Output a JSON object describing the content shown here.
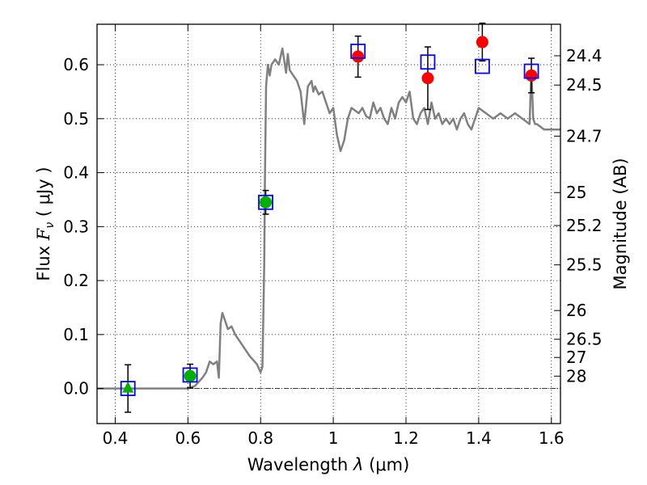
{
  "chart_data": {
    "type": "scatter",
    "x_axis": {
      "label_prefix": "Wavelength  ",
      "label_symbol": "λ",
      "label_suffix": " (μm)",
      "range": [
        0.35,
        1.625
      ],
      "ticks": [
        0.4,
        0.6,
        0.8,
        1.0,
        1.2,
        1.4,
        1.6
      ],
      "tick_labels": [
        "0.4",
        "0.6",
        "0.8",
        "1",
        "1.2",
        "1.4",
        "1.6"
      ]
    },
    "y_axis": {
      "label_prefix": "Flux  ",
      "label_symbol": "F",
      "label_subscript": "ν",
      "label_suffix": "  ( μJy )",
      "range": [
        -0.065,
        0.675
      ],
      "ticks": [
        0.0,
        0.1,
        0.2,
        0.3,
        0.4,
        0.5,
        0.6
      ],
      "tick_labels": [
        "0.0",
        "0.1",
        "0.2",
        "0.3",
        "0.4",
        "0.5",
        "0.6"
      ]
    },
    "y2_axis": {
      "label": "Magnitude (AB)",
      "ticks": [
        {
          "label": "24.4",
          "flux": 0.6166
        },
        {
          "label": "24.5",
          "flux": 0.5623
        },
        {
          "label": "24.7",
          "flux": 0.4677
        },
        {
          "label": "25",
          "flux": 0.3631
        },
        {
          "label": "25.2",
          "flux": 0.302
        },
        {
          "label": "25.5",
          "flux": 0.2291
        },
        {
          "label": "26",
          "flux": 0.1445
        },
        {
          "label": "26.5",
          "flux": 0.0912
        },
        {
          "label": "27",
          "flux": 0.0575
        },
        {
          "label": "28",
          "flux": 0.0229
        }
      ]
    },
    "grid": true,
    "zero_line": true,
    "model_spectrum": {
      "color": "#808080",
      "x": [
        0.35,
        0.6,
        0.62,
        0.64,
        0.65,
        0.66,
        0.67,
        0.68,
        0.685,
        0.69,
        0.695,
        0.7,
        0.71,
        0.72,
        0.73,
        0.75,
        0.77,
        0.79,
        0.8,
        0.805,
        0.81,
        0.812,
        0.815,
        0.82,
        0.825,
        0.83,
        0.84,
        0.85,
        0.86,
        0.87,
        0.875,
        0.88,
        0.89,
        0.9,
        0.91,
        0.92,
        0.93,
        0.94,
        0.945,
        0.95,
        0.96,
        0.97,
        0.98,
        0.99,
        1.0,
        1.01,
        1.02,
        1.03,
        1.04,
        1.05,
        1.06,
        1.07,
        1.08,
        1.09,
        1.1,
        1.11,
        1.12,
        1.13,
        1.14,
        1.15,
        1.16,
        1.17,
        1.18,
        1.19,
        1.2,
        1.21,
        1.22,
        1.23,
        1.24,
        1.25,
        1.26,
        1.27,
        1.28,
        1.29,
        1.3,
        1.31,
        1.32,
        1.33,
        1.34,
        1.35,
        1.36,
        1.37,
        1.38,
        1.39,
        1.4,
        1.42,
        1.44,
        1.46,
        1.48,
        1.5,
        1.52,
        1.54,
        1.545,
        1.55,
        1.555,
        1.56,
        1.58,
        1.6,
        1.625
      ],
      "y": [
        0.0,
        0.0,
        0.005,
        0.02,
        0.03,
        0.05,
        0.045,
        0.05,
        0.02,
        0.12,
        0.14,
        0.13,
        0.11,
        0.115,
        0.1,
        0.08,
        0.06,
        0.045,
        0.03,
        0.04,
        0.23,
        0.39,
        0.56,
        0.6,
        0.58,
        0.6,
        0.61,
        0.6,
        0.63,
        0.585,
        0.62,
        0.59,
        0.58,
        0.57,
        0.55,
        0.49,
        0.56,
        0.57,
        0.55,
        0.56,
        0.545,
        0.55,
        0.53,
        0.51,
        0.52,
        0.47,
        0.44,
        0.46,
        0.5,
        0.52,
        0.515,
        0.51,
        0.52,
        0.505,
        0.5,
        0.53,
        0.51,
        0.52,
        0.5,
        0.49,
        0.52,
        0.5,
        0.53,
        0.54,
        0.53,
        0.55,
        0.5,
        0.49,
        0.51,
        0.52,
        0.49,
        0.53,
        0.5,
        0.51,
        0.49,
        0.5,
        0.49,
        0.5,
        0.48,
        0.5,
        0.51,
        0.49,
        0.48,
        0.5,
        0.52,
        0.51,
        0.5,
        0.51,
        0.5,
        0.51,
        0.5,
        0.49,
        0.59,
        0.5,
        0.49,
        0.49,
        0.48,
        0.48,
        0.48
      ]
    },
    "model_photometry": {
      "marker": "open-square",
      "color": "#0000ff",
      "points": [
        {
          "x": 0.435,
          "y": 0.0
        },
        {
          "x": 0.606,
          "y": 0.025
        },
        {
          "x": 0.814,
          "y": 0.345
        },
        {
          "x": 1.068,
          "y": 0.625
        },
        {
          "x": 1.26,
          "y": 0.605
        },
        {
          "x": 1.41,
          "y": 0.597
        },
        {
          "x": 1.545,
          "y": 0.588
        }
      ]
    },
    "observed_detections": {
      "marker": "circle",
      "color": "#00b000",
      "points": [
        {
          "x": 0.606,
          "y": 0.023,
          "yerr": 0.022
        },
        {
          "x": 0.814,
          "y": 0.345,
          "yerr": 0.022
        }
      ]
    },
    "observed_upper_limit": {
      "marker": "triangle",
      "color": "#00b000",
      "points": [
        {
          "x": 0.435,
          "y": 0.0,
          "yerr": 0.044
        }
      ]
    },
    "observed_nir": {
      "marker": "circle",
      "color": "#ff0000",
      "points": [
        {
          "x": 1.068,
          "y": 0.615,
          "yerr": 0.038
        },
        {
          "x": 1.26,
          "y": 0.575,
          "yerr": 0.058
        },
        {
          "x": 1.41,
          "y": 0.642,
          "yerr": 0.035
        },
        {
          "x": 1.545,
          "y": 0.58,
          "yerr": 0.032
        }
      ]
    }
  }
}
